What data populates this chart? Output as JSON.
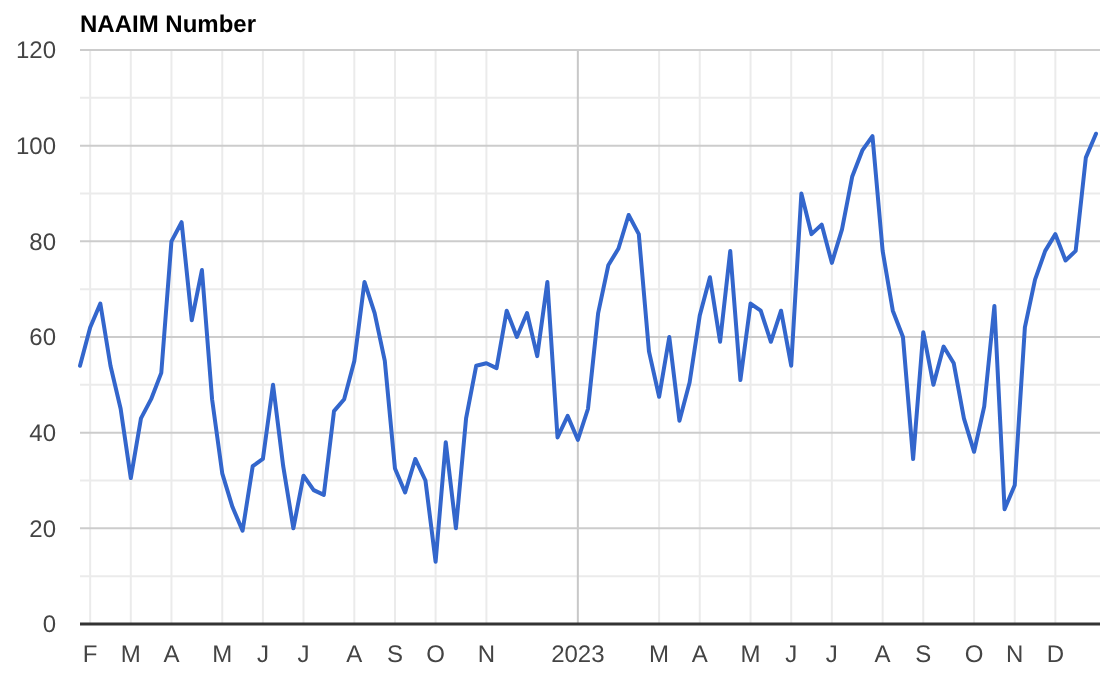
{
  "chart_data": {
    "type": "line",
    "title": "NAAIM Number",
    "categories": [
      null,
      "F",
      null,
      null,
      null,
      "M",
      null,
      null,
      null,
      "A",
      null,
      null,
      null,
      null,
      "M",
      null,
      null,
      null,
      "J",
      null,
      null,
      null,
      "J",
      null,
      null,
      null,
      null,
      "A",
      null,
      null,
      null,
      "S",
      null,
      null,
      null,
      "O",
      null,
      null,
      null,
      null,
      "N",
      null,
      null,
      null,
      null,
      null,
      null,
      null,
      null,
      "2023",
      null,
      null,
      null,
      null,
      null,
      null,
      null,
      "M",
      null,
      null,
      null,
      "A",
      null,
      null,
      null,
      null,
      "M",
      null,
      null,
      null,
      "J",
      null,
      null,
      null,
      "J",
      null,
      null,
      null,
      null,
      "A",
      null,
      null,
      null,
      "S",
      null,
      null,
      null,
      null,
      "O",
      null,
      null,
      null,
      "N",
      null,
      null,
      null,
      "D",
      null,
      null,
      null,
      null
    ],
    "series": [
      {
        "color": "#3366cc",
        "values": [
          54,
          62,
          67,
          54,
          45,
          30.5,
          43,
          47,
          52.5,
          80,
          84,
          63.5,
          74,
          47,
          31.5,
          24.5,
          19.5,
          33,
          34.5,
          50,
          33,
          20,
          31,
          28,
          27,
          44.5,
          47,
          55,
          71.5,
          65,
          55,
          32.5,
          27.5,
          34.5,
          30,
          13,
          38,
          20,
          43,
          54,
          54.5,
          53.5,
          65.5,
          60,
          65,
          56,
          71.5,
          39,
          43.5,
          38.5,
          45,
          65,
          75,
          78.5,
          85.5,
          81.5,
          57,
          47.5,
          60,
          42.5,
          50.5,
          64.5,
          72.5,
          59,
          78,
          51,
          67,
          65.5,
          59,
          65.5,
          54,
          90,
          81.5,
          83.5,
          75.5,
          82.5,
          93.5,
          99,
          102,
          78,
          65.5,
          60,
          34.5,
          61,
          50,
          58,
          54.5,
          43,
          36,
          45.5,
          66.5,
          24,
          29,
          62,
          72,
          78,
          81.5,
          76,
          78,
          97.5,
          102.5
        ]
      }
    ],
    "ylim": [
      0,
      120
    ],
    "yticks": [
      0,
      20,
      40,
      60,
      80,
      100,
      120
    ],
    "grid": true,
    "marker": "none",
    "line_style": "solid"
  }
}
